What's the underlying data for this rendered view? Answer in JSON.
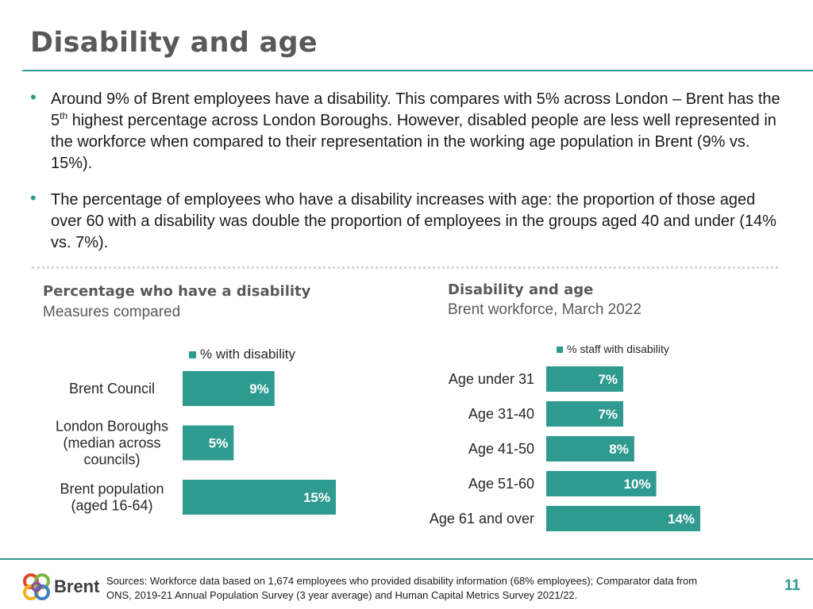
{
  "slide": {
    "title": "Disability and age",
    "bullets": [
      {
        "part1": "Around 9% of Brent employees have a disability. This compares with 5% across London – Brent has the 5",
        "sup": "th",
        "part2": " highest percentage across London Boroughs. However, disabled people are less well represented in the workforce when compared to their representation in the working age population in Brent (9% vs. 15%)."
      },
      {
        "part1": "The percentage of employees who have a disability increases with age: the proportion of those aged over 60 with a disability was double the proportion of employees in the groups aged 40 and under (14% vs. 7%)."
      }
    ],
    "bullet_symbol": "•"
  },
  "left_chart_header": {
    "title": "Percentage who have a disability",
    "subtitle": "Measures compared"
  },
  "right_chart_header": {
    "title": "Disability and age",
    "subtitle": "Brent workforce, March 2022"
  },
  "chart_data": [
    {
      "type": "bar",
      "orientation": "horizontal",
      "title": "Percentage who have a disability",
      "subtitle": "Measures compared",
      "categories": [
        [
          "Brent Council"
        ],
        [
          "London Boroughs",
          "(median across",
          "councils)"
        ],
        [
          "Brent population",
          "(aged 16-64)"
        ]
      ],
      "category_names": [
        "Brent Council",
        "London Boroughs (median across councils)",
        "Brent population (aged 16-64)"
      ],
      "series": [
        {
          "name": "% with disability",
          "values": [
            9,
            5,
            15
          ]
        }
      ],
      "data_labels": [
        "9%",
        "5%",
        "15%"
      ],
      "xlim": [
        0,
        15
      ],
      "color": "#2f9a8f",
      "legend": "top"
    },
    {
      "type": "bar",
      "orientation": "horizontal",
      "title": "Disability and age",
      "subtitle": "Brent workforce, March 2022",
      "categories": [
        [
          "Age under 31"
        ],
        [
          "Age 31-40"
        ],
        [
          "Age 41-50"
        ],
        [
          "Age 51-60"
        ],
        [
          "Age 61 and over"
        ]
      ],
      "category_names": [
        "Age under 31",
        "Age 31-40",
        "Age 41-50",
        "Age 51-60",
        "Age 61 and over"
      ],
      "series": [
        {
          "name": "% staff with disability",
          "values": [
            7,
            7,
            8,
            10,
            14
          ]
        }
      ],
      "data_labels": [
        "7%",
        "7%",
        "8%",
        "10%",
        "14%"
      ],
      "xlim": [
        0,
        14
      ],
      "color": "#2f9a8f",
      "legend": "top"
    }
  ],
  "footer": {
    "logo_text": "Brent",
    "sources_line1": "Sources: Workforce data based on 1,674 employees who provided disability information (68% employees); Comparator data from",
    "sources_line2": "ONS, 2019-21 Annual Population Survey (3 year average) and Human Capital Metrics Survey 2021/22.",
    "page_number": "11"
  }
}
